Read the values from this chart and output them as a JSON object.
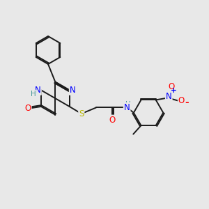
{
  "bg_color": "#e8e8e8",
  "bond_color": "#1a1a1a",
  "atom_colors": {
    "N": "#0000ff",
    "O": "#ff0000",
    "S": "#b8b800",
    "H": "#4a9a9a",
    "C": "#1a1a1a"
  },
  "bond_width": 1.4,
  "dbo": 0.06,
  "font_size": 8.5
}
